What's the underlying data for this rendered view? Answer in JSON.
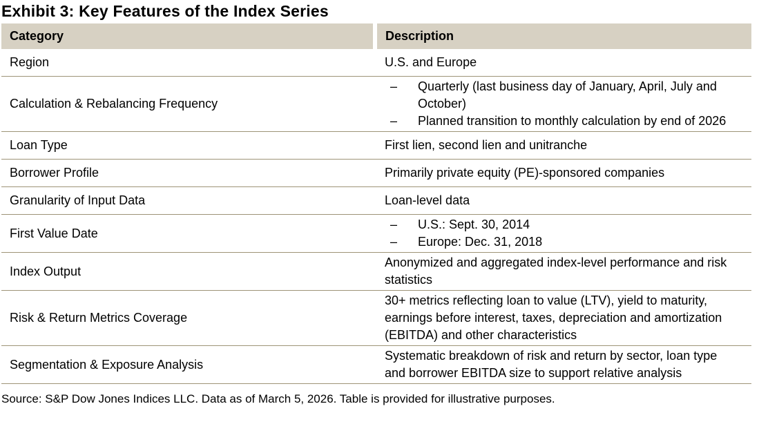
{
  "title": "Exhibit 3: Key Features of the Index Series",
  "table": {
    "columns": {
      "category": "Category",
      "description": "Description"
    },
    "bullet_marker": "–",
    "rows": [
      {
        "category": "Region",
        "description": "U.S. and Europe"
      },
      {
        "category": "Calculation & Rebalancing Frequency",
        "bullets": [
          "Quarterly (last business day of January, April, July and October)",
          "Planned transition to monthly calculation by end of 2026"
        ]
      },
      {
        "category": "Loan Type",
        "description": "First lien, second lien and unitranche"
      },
      {
        "category": "Borrower Profile",
        "description": "Primarily private equity (PE)-sponsored companies"
      },
      {
        "category": "Granularity of Input Data",
        "description": "Loan-level data"
      },
      {
        "category": "First Value Date",
        "bullets": [
          "U.S.: Sept. 30, 2014",
          "Europe: Dec. 31, 2018"
        ]
      },
      {
        "category": "Index Output",
        "description": "Anonymized and aggregated index-level performance and risk statistics"
      },
      {
        "category": "Risk & Return Metrics Coverage",
        "description": "30+ metrics reflecting loan to value (LTV), yield to maturity, earnings before interest, taxes, depreciation and amortization (EBITDA) and other characteristics"
      },
      {
        "category": "Segmentation & Exposure Analysis",
        "description": "Systematic breakdown of risk and return by sector, loan type and borrower EBITDA size to support relative analysis"
      }
    ]
  },
  "source_note": "Source: S&P Dow Jones Indices LLC. Data as of March 5, 2026. Table is provided for illustrative purposes.",
  "colors": {
    "header_bg": "#d7d1c3",
    "row_border": "#9d9376",
    "text": "#000000",
    "background": "#ffffff"
  }
}
